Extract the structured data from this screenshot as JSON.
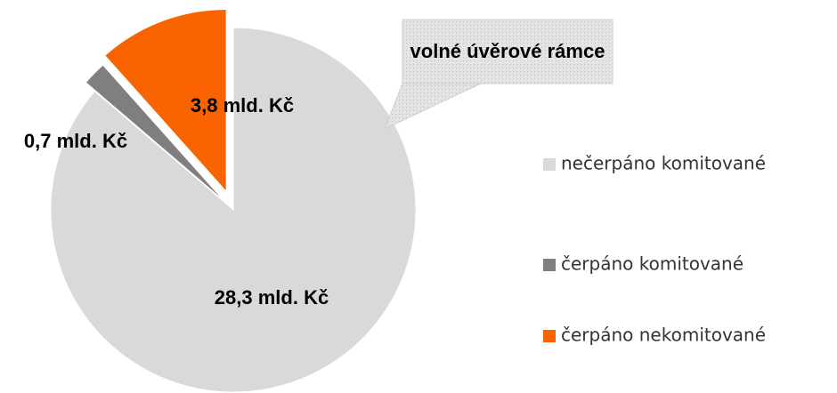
{
  "chart_data": {
    "type": "pie",
    "categories": [
      "nečerpáno komitované",
      "čerpáno komitované",
      "čerpáno nekomitované"
    ],
    "values": [
      28.3,
      0.7,
      3.8
    ],
    "value_labels": [
      "28,3 mld. Kč",
      "0,7 mld. Kč",
      "3,8 mld. Kč"
    ],
    "colors": [
      "#d9d9d9",
      "#7f7f7f",
      "#fa6400"
    ],
    "annotation": "volné úvěrové rámce",
    "legend": "right"
  }
}
